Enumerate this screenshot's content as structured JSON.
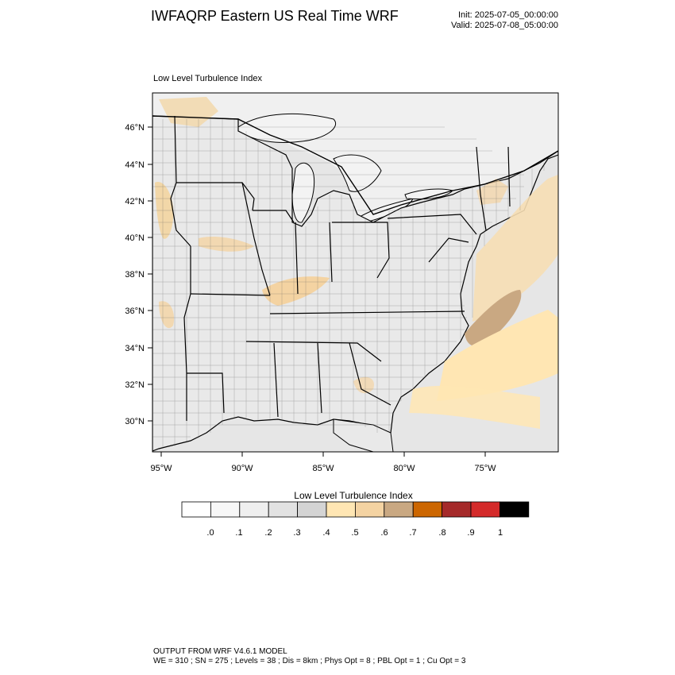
{
  "header": {
    "title": "IWFAQRP Eastern US Real Time WRF",
    "init": "Init: 2025-07-05_00:00:00",
    "valid": "Valid: 2025-07-08_05:00:00"
  },
  "field_label": "Low Level Turbulence Index",
  "map": {
    "lat_ticks": [
      "46°N",
      "44°N",
      "42°N",
      "40°N",
      "38°N",
      "36°N",
      "34°N",
      "32°N",
      "30°N"
    ],
    "lon_ticks": [
      "95°W",
      "90°W",
      "85°W",
      "80°W",
      "75°W"
    ]
  },
  "colorbar": {
    "title": "Low Level Turbulence Index",
    "labels": [
      ".0",
      ".1",
      ".2",
      ".3",
      ".4",
      ".5",
      ".6",
      ".7",
      ".8",
      ".9",
      "1"
    ],
    "colors": [
      "#ffffff",
      "#f7f7f7",
      "#efefef",
      "#e2e2e2",
      "#d4d4d4",
      "#ffe6b3",
      "#f4d3a2",
      "#c9a882",
      "#cc6600",
      "#a52a2a",
      "#d42a2a",
      "#000000"
    ]
  },
  "footer": {
    "line1": "OUTPUT FROM WRF V4.6.1 MODEL",
    "line2": "WE = 310 ; SN = 275 ; Levels = 38 ; Dis = 8km ; Phys Opt = 8 ; PBL Opt = 1 ; Cu Opt = 3"
  }
}
